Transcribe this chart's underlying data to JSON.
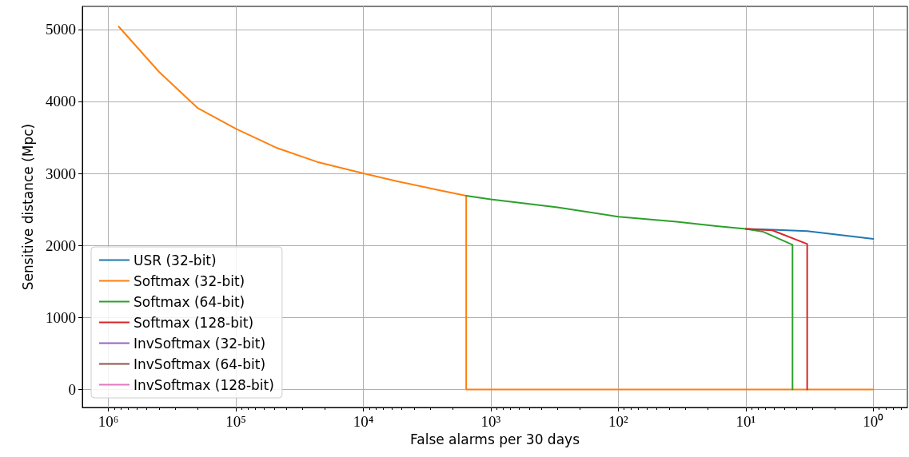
{
  "chart_data": {
    "type": "line",
    "xlabel": "False alarms per 30 days",
    "ylabel": "Sensitive distance (Mpc)",
    "log": "x",
    "xlim": [
      1600000,
      0.54
    ],
    "xticks": [
      {
        "value": 1000000,
        "label": "10⁶"
      },
      {
        "value": 100000,
        "label": "10⁵"
      },
      {
        "value": 10000,
        "label": "10⁴"
      },
      {
        "value": 1000,
        "label": "10³"
      },
      {
        "value": 100,
        "label": "10²"
      },
      {
        "value": 10,
        "label": "10¹"
      },
      {
        "value": 1,
        "label": "10⁰"
      }
    ],
    "ylim": [
      -250,
      5320
    ],
    "yticks": [
      0,
      1000,
      2000,
      3000,
      4000,
      5000
    ],
    "grid": true,
    "legend": "bottom left",
    "marker": "none",
    "line_style": "solid",
    "series": [
      {
        "name": "USR (32-bit)",
        "color": "#1f77b4",
        "x": [
          10,
          6.2,
          3.3,
          1
        ],
        "values": [
          2230,
          2220,
          2200,
          2090
        ]
      },
      {
        "name": "Softmax (32-bit)",
        "color": "#ff7f0e",
        "x": [
          830000,
          400000,
          200000,
          100000,
          47000,
          23000,
          10000,
          5400,
          2600,
          1560,
          1560,
          1
        ],
        "values": [
          5040,
          4410,
          3910,
          3620,
          3350,
          3160,
          3000,
          2890,
          2770,
          2690,
          0,
          0
        ]
      },
      {
        "name": "Softmax (64-bit)",
        "color": "#2ca02c",
        "x": [
          1560,
          1000,
          300,
          100,
          35,
          17,
          10,
          7.3,
          4.3,
          4.3
        ],
        "values": [
          2690,
          2640,
          2530,
          2400,
          2330,
          2270,
          2230,
          2190,
          2010,
          0
        ]
      },
      {
        "name": "Softmax (128-bit)",
        "color": "#d62728",
        "x": [
          10,
          6.2,
          3.3,
          3.3
        ],
        "values": [
          2230,
          2210,
          2020,
          0
        ]
      },
      {
        "name": "InvSoftmax (32-bit)",
        "color": "#9467bd"
      },
      {
        "name": "InvSoftmax (64-bit)",
        "color": "#8c564b"
      },
      {
        "name": "InvSoftmax (128-bit)",
        "color": "#e377c2"
      }
    ]
  }
}
